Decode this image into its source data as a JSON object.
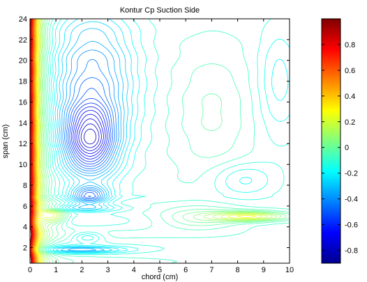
{
  "chart_data": {
    "type": "contour",
    "title": "Kontur Cp Suction Side",
    "xlabel": "chord (cm)",
    "ylabel": "span (cm)",
    "xlim": [
      0,
      10
    ],
    "ylim": [
      0.5,
      24
    ],
    "x_ticks": [
      "0",
      "1",
      "2",
      "3",
      "4",
      "5",
      "6",
      "7",
      "8",
      "9",
      "10"
    ],
    "y_ticks": [
      "2",
      "4",
      "6",
      "8",
      "10",
      "12",
      "14",
      "16",
      "18",
      "20",
      "22",
      "24"
    ],
    "colorbar": {
      "colormap": "jet",
      "clim": [
        -0.9,
        1.0
      ],
      "ticks": [
        "0.8",
        "0.6",
        "0.4",
        "0.2",
        "0",
        "-0.2",
        "-0.4",
        "-0.6",
        "-0.8"
      ]
    },
    "features": [
      {
        "kind": "high-pressure band near leading edge",
        "x_range": [
          0,
          0.6
        ],
        "cp_peak": 1.0
      },
      {
        "kind": "closed minimum",
        "x": 2.3,
        "y": 12.3,
        "cp": -0.8
      },
      {
        "kind": "closed minimum",
        "x": 2.3,
        "y": 7.0,
        "cp": -0.6
      },
      {
        "kind": "elongated pressure recovery",
        "x": 8.5,
        "y": 5.0,
        "cp": 0.1
      },
      {
        "kind": "spanwise disturbance",
        "y": 5.0
      },
      {
        "kind": "spanwise disturbance",
        "y": 1.8
      }
    ]
  },
  "colors": {
    "jet": [
      "#00008f",
      "#0000ff",
      "#00ffff",
      "#ffff00",
      "#ff0000",
      "#800000"
    ]
  }
}
